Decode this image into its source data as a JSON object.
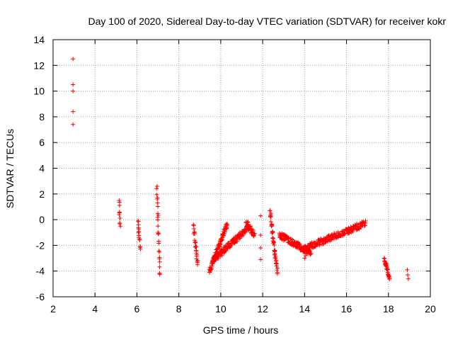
{
  "chart_data": {
    "type": "scatter",
    "title": "Day 100 of 2020, Sidereal Day-to-day VTEC variation (SDTVAR) for receiver kokr",
    "xlabel": "GPS time / hours",
    "ylabel": "SDTVAR / TECUs",
    "xlim": [
      2,
      20
    ],
    "ylim": [
      -6,
      14
    ],
    "xticks": [
      2,
      4,
      6,
      8,
      10,
      12,
      14,
      16,
      18,
      20
    ],
    "yticks": [
      -6,
      -4,
      -2,
      0,
      2,
      4,
      6,
      8,
      10,
      12,
      14
    ],
    "grid": true,
    "marker": "+",
    "colors": {
      "marker": "#ff0000",
      "grid": "#a0a0a0",
      "axis": "#000000"
    },
    "segments": [
      {
        "x_start": 2.95,
        "x_end": 2.95,
        "points": [
          [
            2.95,
            12.5
          ],
          [
            2.95,
            10.5
          ],
          [
            2.95,
            10.0
          ],
          [
            2.95,
            8.4
          ],
          [
            2.95,
            7.4
          ]
        ]
      },
      {
        "x_start": 5.15,
        "x_end": 5.2,
        "y_start": 1.5,
        "y_end": -0.7,
        "y_range": [
          -0.7,
          1.5
        ],
        "count": 10
      },
      {
        "x_start": 6.05,
        "x_end": 6.15,
        "y_start": 0.0,
        "y_end": -2.3,
        "y_range": [
          -2.3,
          0.0
        ],
        "count": 14
      },
      {
        "x_start": 6.95,
        "x_end": 7.1,
        "y_start": 2.7,
        "y_end": -4.5,
        "y_range": [
          -4.5,
          2.7
        ],
        "count": 26
      },
      {
        "x_start": 8.7,
        "x_end": 8.9,
        "y_start": -0.5,
        "y_end": -3.5,
        "y_range": [
          -3.5,
          -0.4
        ],
        "count": 24
      },
      {
        "x_start": 9.45,
        "x_end": 10.3,
        "y_start": -4.0,
        "y_end": -0.3,
        "y_range": [
          -4.1,
          -0.3
        ],
        "count": 90
      },
      {
        "x_start": 9.6,
        "x_end": 11.4,
        "y_start": -3.2,
        "y_end": -0.5,
        "y_range": [
          -3.5,
          -0.5
        ],
        "count": 150
      },
      {
        "x_start": 11.2,
        "x_end": 11.6,
        "y_start": -0.2,
        "y_end": -1.2,
        "y_range": [
          -1.3,
          0.0
        ],
        "count": 30
      },
      {
        "x_start": 11.9,
        "x_end": 12.0,
        "points": [
          [
            11.9,
            0.3
          ],
          [
            11.9,
            -1.2
          ],
          [
            11.9,
            -2.2
          ],
          [
            11.9,
            -3.1
          ]
        ]
      },
      {
        "x_start": 12.35,
        "x_end": 12.7,
        "y_start": 0.7,
        "y_end": -4.2,
        "y_range": [
          -4.2,
          0.7
        ],
        "count": 45
      },
      {
        "x_start": 12.8,
        "x_end": 14.3,
        "y_start": -1.2,
        "y_end": -2.6,
        "y_range": [
          -2.8,
          -1.0
        ],
        "count": 140
      },
      {
        "x_start": 13.9,
        "x_end": 16.9,
        "y_start": -2.3,
        "y_end": -0.3,
        "y_range": [
          -2.6,
          -0.1
        ],
        "count": 200
      },
      {
        "x_start": 14.0,
        "x_end": 14.1,
        "points": [
          [
            14.0,
            -3.0
          ],
          [
            14.05,
            -2.8
          ]
        ]
      },
      {
        "x_start": 17.8,
        "x_end": 18.05,
        "y_start": -3.0,
        "y_end": -4.6,
        "y_range": [
          -4.7,
          -3.0
        ],
        "count": 30
      },
      {
        "x_start": 18.9,
        "x_end": 18.95,
        "points": [
          [
            18.9,
            -3.9
          ],
          [
            18.92,
            -4.3
          ],
          [
            18.95,
            -4.6
          ]
        ]
      }
    ]
  }
}
